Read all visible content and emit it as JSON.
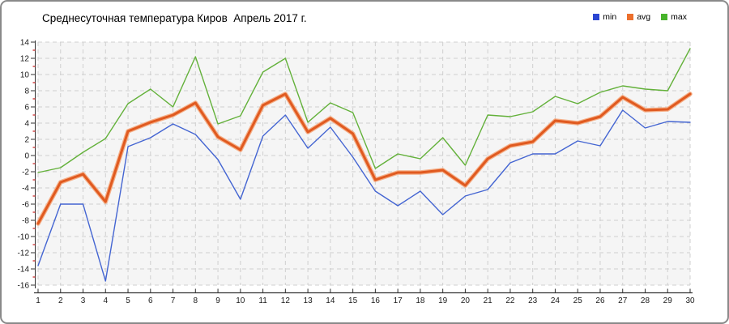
{
  "title": "Среднесуточная температура Киров  Апрель 2017 г.",
  "legend": [
    {
      "label": "min",
      "color": "#2b46d2"
    },
    {
      "label": "avg",
      "color": "#ec6f2d"
    },
    {
      "label": "max",
      "color": "#48b42c"
    }
  ],
  "axes": {
    "y_min": -16,
    "y_max": 14,
    "y_major_step": 2,
    "y_minor_step": 1,
    "minor_tick_color": "#cc2222",
    "axis_color": "#333333",
    "label_color": "#1a1a1a",
    "grid_color": "#cfcfcf",
    "plot_bg": "#f5f5f5"
  },
  "chart_data": {
    "type": "line",
    "title": "Среднесуточная температура Киров  Апрель 2017 г.",
    "xlabel": "",
    "ylabel": "",
    "ylim": [
      -16,
      14
    ],
    "grid": "dashed",
    "legend_position": "top-right",
    "x": [
      1,
      2,
      3,
      4,
      5,
      6,
      7,
      8,
      9,
      10,
      11,
      12,
      13,
      14,
      15,
      16,
      17,
      18,
      19,
      20,
      21,
      22,
      23,
      24,
      25,
      26,
      27,
      28,
      29,
      30
    ],
    "series": [
      {
        "name": "min",
        "color": "#4465d2",
        "halo_color": null,
        "width": 1.4,
        "values": [
          -13.6,
          -6.0,
          -6.0,
          -15.5,
          1.1,
          2.2,
          3.9,
          2.6,
          -0.5,
          -5.4,
          2.4,
          5.0,
          0.9,
          3.5,
          -0.2,
          -4.4,
          -6.2,
          -4.4,
          -7.3,
          -5.0,
          -4.2,
          -0.9,
          0.2,
          0.2,
          1.8,
          1.2,
          5.6,
          3.4,
          4.2,
          4.1
        ]
      },
      {
        "name": "avg",
        "color": "#e05a20",
        "halo_color": "#f5b089",
        "width": 3,
        "values": [
          -8.4,
          -3.3,
          -2.3,
          -5.7,
          3.0,
          4.1,
          5.0,
          6.5,
          2.3,
          0.7,
          6.2,
          7.6,
          2.9,
          4.6,
          2.7,
          -3.0,
          -2.1,
          -2.1,
          -1.8,
          -3.7,
          -0.4,
          1.2,
          1.7,
          4.3,
          4.0,
          4.8,
          7.2,
          5.6,
          5.7,
          7.6
        ]
      },
      {
        "name": "max",
        "color": "#63b13a",
        "halo_color": null,
        "width": 1.4,
        "values": [
          -2.1,
          -1.5,
          0.4,
          2.1,
          6.4,
          8.2,
          6.0,
          12.2,
          3.9,
          4.9,
          10.3,
          12.0,
          4.1,
          6.5,
          5.3,
          -1.6,
          0.2,
          -0.4,
          2.2,
          -1.2,
          5.0,
          4.8,
          5.4,
          7.3,
          6.4,
          7.8,
          8.6,
          8.2,
          8.0,
          13.2
        ]
      }
    ]
  }
}
